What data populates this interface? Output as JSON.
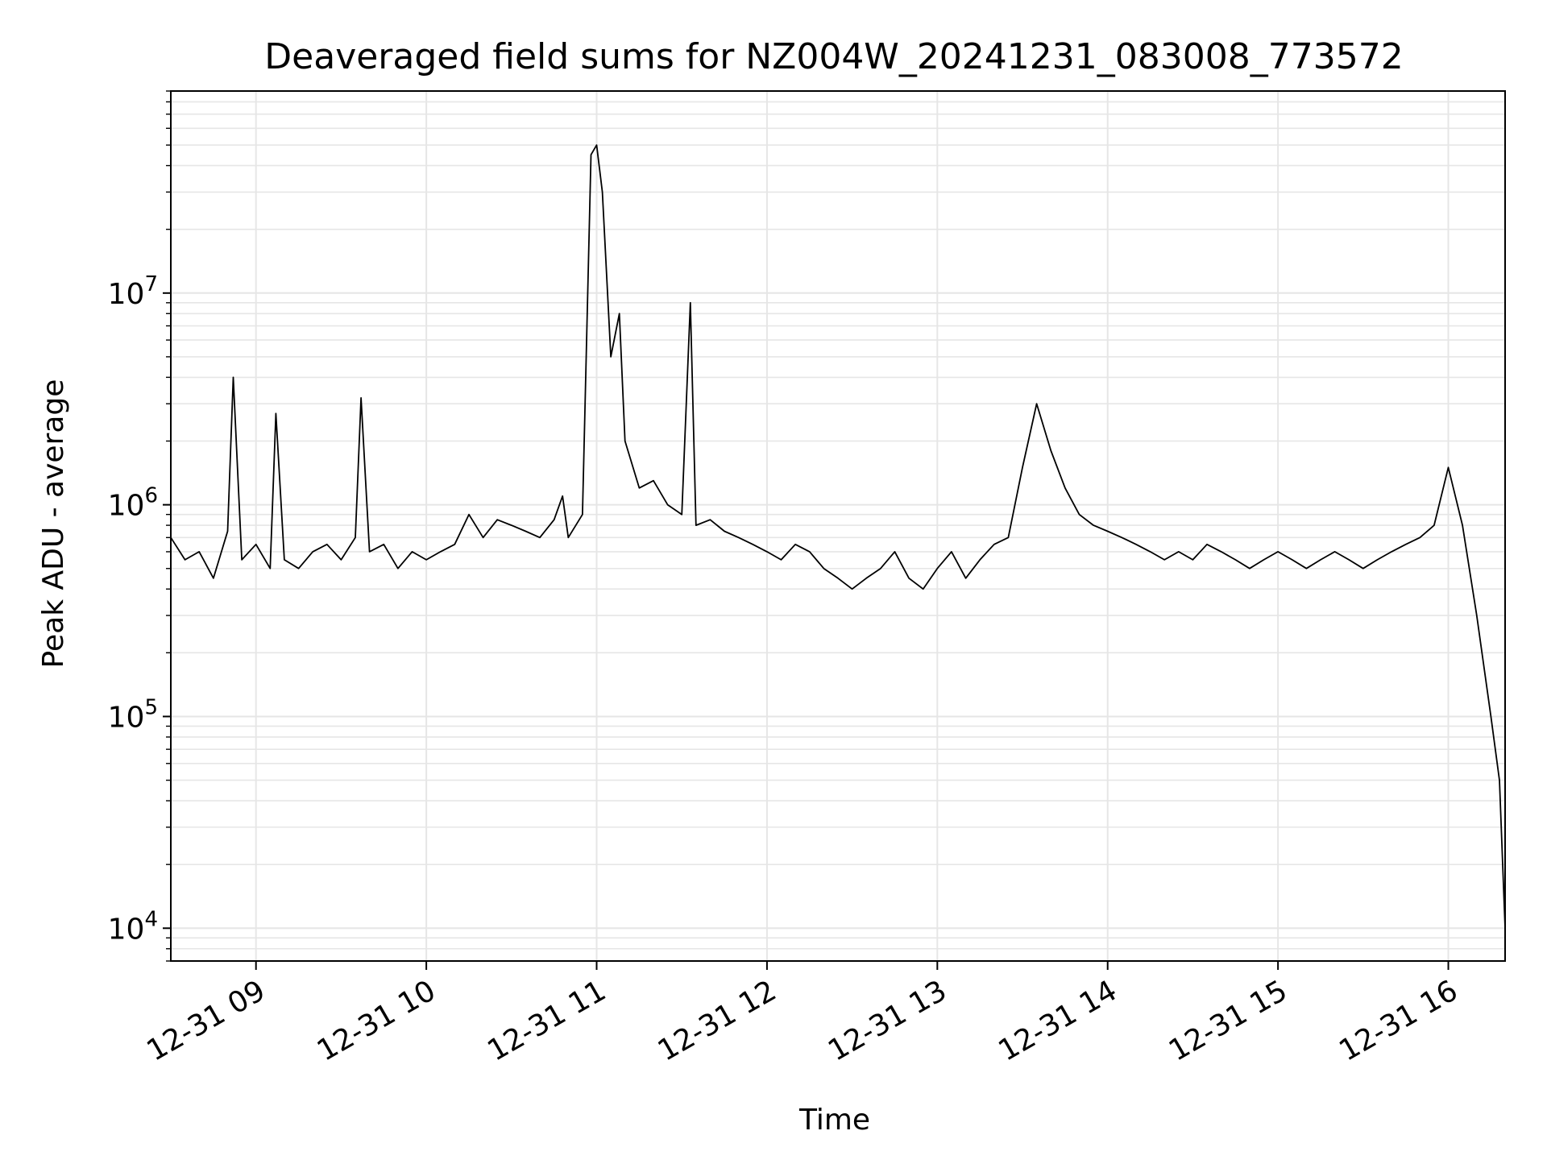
{
  "chart_data": {
    "type": "line",
    "title": "Deaveraged field sums for NZ004W_20241231_083008_773572",
    "xlabel": "Time",
    "ylabel": "Peak ADU - average",
    "yscale": "log",
    "ylim": [
      7000,
      90000000
    ],
    "xlim": [
      "2024-12-31 08:30",
      "2024-12-31 16:20"
    ],
    "grid": "on (major and minor)",
    "legend": "none",
    "line_color": "#000000",
    "grid_color": "#e6e6e6",
    "x_ticks": [
      "12-31 09",
      "12-31 10",
      "12-31 11",
      "12-31 12",
      "12-31 13",
      "12-31 14",
      "12-31 15",
      "12-31 16"
    ],
    "y_ticks": [
      {
        "value": 10000,
        "label": "10⁴"
      },
      {
        "value": 100000,
        "label": "10⁵"
      },
      {
        "value": 1000000,
        "label": "10⁶"
      },
      {
        "value": 10000000,
        "label": "10⁷"
      }
    ],
    "series": [
      {
        "x": [
          "2024-12-31 08:30",
          "2024-12-31 08:35",
          "2024-12-31 08:40",
          "2024-12-31 08:45",
          "2024-12-31 08:50",
          "2024-12-31 08:52",
          "2024-12-31 08:55",
          "2024-12-31 09:00",
          "2024-12-31 09:05",
          "2024-12-31 09:07",
          "2024-12-31 09:10",
          "2024-12-31 09:15",
          "2024-12-31 09:20",
          "2024-12-31 09:25",
          "2024-12-31 09:30",
          "2024-12-31 09:35",
          "2024-12-31 09:37",
          "2024-12-31 09:40",
          "2024-12-31 09:45",
          "2024-12-31 09:50",
          "2024-12-31 09:55",
          "2024-12-31 10:00",
          "2024-12-31 10:05",
          "2024-12-31 10:10",
          "2024-12-31 10:15",
          "2024-12-31 10:20",
          "2024-12-31 10:25",
          "2024-12-31 10:30",
          "2024-12-31 10:35",
          "2024-12-31 10:40",
          "2024-12-31 10:45",
          "2024-12-31 10:48",
          "2024-12-31 10:50",
          "2024-12-31 10:55",
          "2024-12-31 10:58",
          "2024-12-31 11:00",
          "2024-12-31 11:02",
          "2024-12-31 11:05",
          "2024-12-31 11:08",
          "2024-12-31 11:10",
          "2024-12-31 11:15",
          "2024-12-31 11:20",
          "2024-12-31 11:25",
          "2024-12-31 11:30",
          "2024-12-31 11:33",
          "2024-12-31 11:35",
          "2024-12-31 11:40",
          "2024-12-31 11:45",
          "2024-12-31 11:50",
          "2024-12-31 11:55",
          "2024-12-31 12:00",
          "2024-12-31 12:05",
          "2024-12-31 12:10",
          "2024-12-31 12:15",
          "2024-12-31 12:20",
          "2024-12-31 12:25",
          "2024-12-31 12:30",
          "2024-12-31 12:35",
          "2024-12-31 12:40",
          "2024-12-31 12:45",
          "2024-12-31 12:50",
          "2024-12-31 12:55",
          "2024-12-31 13:00",
          "2024-12-31 13:05",
          "2024-12-31 13:10",
          "2024-12-31 13:15",
          "2024-12-31 13:20",
          "2024-12-31 13:25",
          "2024-12-31 13:30",
          "2024-12-31 13:35",
          "2024-12-31 13:40",
          "2024-12-31 13:45",
          "2024-12-31 13:50",
          "2024-12-31 13:55",
          "2024-12-31 14:00",
          "2024-12-31 14:05",
          "2024-12-31 14:10",
          "2024-12-31 14:15",
          "2024-12-31 14:20",
          "2024-12-31 14:25",
          "2024-12-31 14:30",
          "2024-12-31 14:35",
          "2024-12-31 14:40",
          "2024-12-31 14:45",
          "2024-12-31 14:50",
          "2024-12-31 14:55",
          "2024-12-31 15:00",
          "2024-12-31 15:05",
          "2024-12-31 15:10",
          "2024-12-31 15:15",
          "2024-12-31 15:20",
          "2024-12-31 15:25",
          "2024-12-31 15:30",
          "2024-12-31 15:35",
          "2024-12-31 15:40",
          "2024-12-31 15:45",
          "2024-12-31 15:50",
          "2024-12-31 15:55",
          "2024-12-31 16:00",
          "2024-12-31 16:05",
          "2024-12-31 16:10",
          "2024-12-31 16:15",
          "2024-12-31 16:18",
          "2024-12-31 16:20"
        ],
        "y": [
          700000,
          550000,
          600000,
          450000,
          750000,
          4000000,
          550000,
          650000,
          500000,
          2700000,
          550000,
          500000,
          600000,
          650000,
          550000,
          700000,
          3200000,
          600000,
          650000,
          500000,
          600000,
          550000,
          600000,
          650000,
          900000,
          700000,
          850000,
          800000,
          750000,
          700000,
          850000,
          1100000,
          700000,
          900000,
          45000000,
          50000000,
          30000000,
          5000000,
          8000000,
          2000000,
          1200000,
          1300000,
          1000000,
          900000,
          9000000,
          800000,
          850000,
          750000,
          700000,
          650000,
          600000,
          550000,
          650000,
          600000,
          500000,
          450000,
          400000,
          450000,
          500000,
          600000,
          450000,
          400000,
          500000,
          600000,
          450000,
          550000,
          650000,
          700000,
          1500000,
          3000000,
          1800000,
          1200000,
          900000,
          800000,
          750000,
          700000,
          650000,
          600000,
          550000,
          600000,
          550000,
          650000,
          600000,
          550000,
          500000,
          550000,
          600000,
          550000,
          500000,
          550000,
          600000,
          550000,
          500000,
          550000,
          600000,
          650000,
          700000,
          800000,
          1500000,
          800000,
          300000,
          100000,
          50000,
          10000
        ]
      }
    ]
  }
}
